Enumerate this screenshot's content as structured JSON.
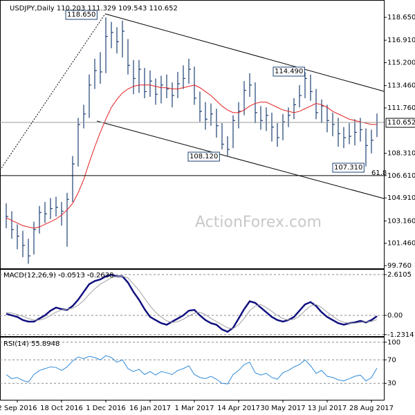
{
  "chart_data": [
    {
      "type": "ohlc",
      "title": "USDJPY,Daily  110.203 111.329 109.543 110.652",
      "high": [
        104.5,
        103.9,
        102.9,
        102.4,
        101.8,
        103.1,
        104.3,
        104.6,
        104.9,
        105.0,
        104.6,
        105.3,
        108.1,
        111.0,
        112.0,
        114.3,
        115.5,
        116.0,
        118.65,
        118.3,
        117.9,
        118.4,
        117.0,
        115.4,
        115.4,
        114.8,
        114.6,
        114.0,
        114.2,
        114.3,
        113.7,
        114.5,
        115.0,
        115.5,
        114.9,
        113.0,
        112.2,
        112.1,
        111.7,
        110.6,
        109.6,
        111.2,
        112.2,
        113.8,
        114.4,
        113.7,
        111.9,
        111.8,
        111.4,
        110.6,
        111.3,
        111.8,
        112.5,
        113.5,
        114.49,
        114.3,
        113.2,
        112.4,
        112.0,
        111.4,
        111.0,
        110.3,
        110.6,
        110.9,
        111.0,
        110.2,
        110.1,
        111.329
      ],
      "low": [
        102.6,
        101.8,
        101.0,
        100.4,
        99.9,
        100.6,
        102.2,
        103.0,
        103.3,
        103.5,
        102.8,
        101.2,
        104.6,
        107.3,
        110.2,
        111.0,
        113.2,
        113.6,
        114.4,
        116.3,
        115.9,
        115.6,
        114.3,
        112.8,
        112.9,
        112.5,
        112.6,
        112.0,
        112.1,
        112.5,
        111.8,
        112.5,
        113.2,
        113.6,
        112.0,
        110.7,
        110.1,
        110.4,
        109.5,
        108.6,
        108.12,
        108.7,
        110.2,
        111.2,
        112.6,
        110.6,
        110.1,
        110.0,
        109.2,
        108.8,
        109.3,
        110.3,
        110.9,
        111.8,
        112.5,
        112.3,
        110.9,
        110.6,
        109.9,
        109.6,
        108.8,
        108.7,
        109.0,
        108.9,
        109.2,
        107.31,
        108.3,
        109.543
      ],
      "close": [
        103.5,
        102.5,
        102.0,
        101.3,
        100.5,
        102.5,
        103.8,
        103.7,
        104.1,
        104.2,
        103.9,
        104.8,
        107.5,
        110.5,
        111.3,
        113.5,
        114.6,
        114.5,
        117.2,
        117.5,
        116.8,
        117.6,
        115.0,
        114.0,
        114.7,
        113.0,
        113.8,
        112.8,
        113.5,
        113.2,
        112.7,
        113.6,
        114.0,
        114.7,
        112.5,
        111.5,
        110.9,
        111.3,
        110.4,
        109.0,
        108.6,
        110.8,
        111.5,
        113.1,
        113.5,
        111.4,
        110.8,
        111.2,
        110.3,
        109.5,
        110.7,
        111.2,
        112.0,
        112.7,
        114.0,
        113.0,
        111.4,
        111.9,
        110.8,
        110.5,
        109.8,
        109.5,
        109.6,
        109.9,
        110.1,
        108.9,
        109.3,
        110.652
      ],
      "bar_color": "#1b3f73",
      "moving_average": {
        "color": "#e31e1e",
        "values": [
          103.4,
          103.2,
          103.0,
          102.8,
          102.7,
          102.6,
          102.7,
          102.9,
          103.1,
          103.3,
          103.6,
          104.0,
          104.5,
          105.3,
          106.3,
          107.6,
          108.8,
          109.9,
          110.9,
          111.8,
          112.4,
          112.9,
          113.2,
          113.4,
          113.5,
          113.5,
          113.5,
          113.4,
          113.3,
          113.3,
          113.2,
          113.2,
          113.3,
          113.4,
          113.5,
          113.3,
          113.0,
          112.7,
          112.3,
          111.9,
          111.6,
          111.4,
          111.4,
          111.6,
          111.9,
          112.1,
          112.2,
          112.2,
          112.0,
          111.8,
          111.6,
          111.5,
          111.4,
          111.5,
          111.7,
          111.9,
          112.1,
          112.0,
          111.8,
          111.5,
          111.3,
          111.1,
          110.9,
          110.8,
          110.7,
          110.6,
          110.5,
          110.5
        ]
      },
      "last_price": 110.652,
      "annotations": [
        "118.650",
        "114.490",
        "108.120",
        "107.310",
        "61.8"
      ],
      "watermark": "ActionForex.com",
      "ylim": [
        99.55,
        119.97
      ],
      "yticks": [
        {
          "value": 118.65,
          "label": "118.650"
        },
        {
          "value": 116.91,
          "label": "116.910"
        },
        {
          "value": 115.2,
          "label": "115.200"
        },
        {
          "value": 113.46,
          "label": "113.460"
        },
        {
          "value": 111.76,
          "label": "111.760"
        },
        {
          "value": 108.31,
          "label": "108.310"
        },
        {
          "value": 106.61,
          "label": "106.610"
        },
        {
          "value": 104.91,
          "label": "104.910"
        },
        {
          "value": 103.16,
          "label": "103.160"
        },
        {
          "value": 101.46,
          "label": "101.460"
        },
        {
          "value": 99.76,
          "label": "99.760"
        }
      ]
    },
    {
      "type": "line",
      "title": "MACD(12,26,9) -0.0513 -0.2638",
      "series": [
        {
          "color": "#101080",
          "values": [
            0.1,
            0.0,
            -0.1,
            -0.3,
            -0.4,
            -0.4,
            -0.2,
            0.0,
            0.3,
            0.5,
            0.4,
            0.35,
            0.6,
            1.0,
            1.5,
            2.0,
            2.2,
            2.3,
            2.5,
            2.6,
            2.5,
            2.5,
            2.1,
            1.5,
            1.0,
            0.4,
            -0.1,
            -0.3,
            -0.5,
            -0.6,
            -0.4,
            -0.2,
            0.0,
            0.3,
            0.35,
            0.0,
            -0.3,
            -0.5,
            -0.6,
            -0.9,
            -1.05,
            -0.8,
            -0.2,
            0.4,
            0.9,
            0.8,
            0.5,
            0.2,
            -0.1,
            -0.3,
            -0.4,
            -0.3,
            -0.1,
            0.3,
            0.7,
            0.85,
            0.6,
            0.2,
            -0.1,
            -0.3,
            -0.5,
            -0.6,
            -0.5,
            -0.45,
            -0.35,
            -0.45,
            -0.3,
            -0.0513
          ]
        },
        {
          "color": "#a0a0a0",
          "values": [
            0.2,
            0.15,
            0.05,
            -0.05,
            -0.2,
            -0.3,
            -0.3,
            -0.2,
            0.0,
            0.2,
            0.35,
            0.4,
            0.45,
            0.65,
            0.95,
            1.35,
            1.7,
            2.0,
            2.2,
            2.4,
            2.5,
            2.5,
            2.4,
            2.0,
            1.6,
            1.1,
            0.6,
            0.2,
            -0.1,
            -0.35,
            -0.45,
            -0.4,
            -0.25,
            -0.05,
            0.15,
            0.2,
            0.05,
            -0.2,
            -0.4,
            -0.6,
            -0.8,
            -0.85,
            -0.6,
            -0.2,
            0.3,
            0.6,
            0.7,
            0.5,
            0.25,
            0.0,
            -0.2,
            -0.3,
            -0.25,
            -0.05,
            0.3,
            0.6,
            0.7,
            0.5,
            0.2,
            -0.05,
            -0.3,
            -0.45,
            -0.5,
            -0.5,
            -0.45,
            -0.4,
            -0.4,
            -0.2638
          ]
        }
      ],
      "ylim": [
        -1.33,
        2.92
      ],
      "yticks": [
        2.6105,
        {
          "value": 0,
          "label": "0.00"
        },
        -1.2314
      ]
    },
    {
      "type": "line",
      "title": "RSI(14) 55.8948",
      "series": [
        {
          "color": "#2f8ad8",
          "values": [
            45,
            38,
            40,
            35,
            32,
            45,
            52,
            55,
            58,
            57,
            52,
            58,
            68,
            75,
            72,
            76,
            74,
            70,
            77,
            74,
            66,
            70,
            55,
            50,
            54,
            45,
            50,
            44,
            50,
            48,
            45,
            52,
            55,
            60,
            45,
            40,
            38,
            42,
            37,
            30,
            29,
            45,
            52,
            62,
            66,
            48,
            44,
            47,
            40,
            37,
            48,
            52,
            58,
            62,
            70,
            60,
            47,
            52,
            42,
            40,
            36,
            34,
            38,
            42,
            44,
            34,
            40,
            55.8948
          ]
        }
      ],
      "ylim": [
        2,
        108
      ],
      "yticks": [
        100,
        70,
        30
      ],
      "categories": [
        null,
        null,
        "2 Sep 2016",
        null,
        null,
        null,
        null,
        null,
        null,
        null,
        "18 Oct 2016",
        null,
        null,
        null,
        null,
        null,
        null,
        null,
        "1 Dec 2016",
        null,
        null,
        null,
        null,
        null,
        null,
        null,
        "16 Jan 2017",
        null,
        null,
        null,
        null,
        null,
        null,
        null,
        "1 Mar 2017",
        null,
        null,
        null,
        null,
        null,
        null,
        null,
        "14 Apr 2017",
        null,
        null,
        null,
        null,
        null,
        null,
        null,
        "30 May 2017",
        null,
        null,
        null,
        null,
        null,
        null,
        null,
        "13 Jul 2017",
        null,
        null,
        null,
        null,
        null,
        null,
        null,
        "28 Aug 2017",
        null
      ]
    }
  ]
}
